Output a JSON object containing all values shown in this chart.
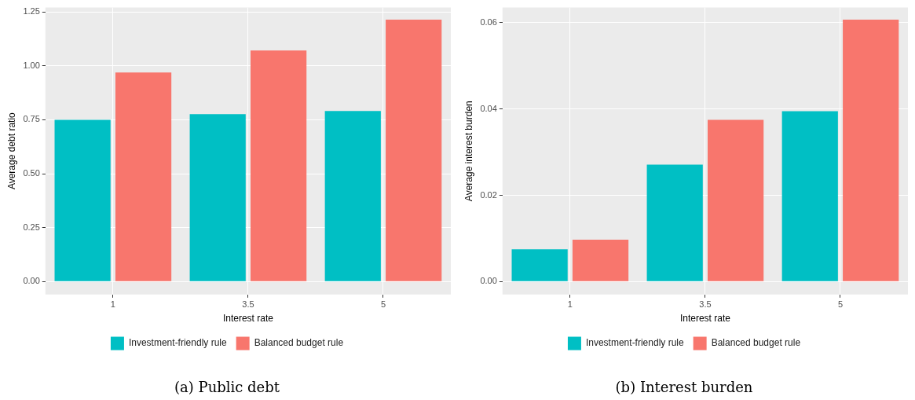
{
  "chart_data": [
    {
      "type": "bar",
      "title": "(a) Public debt",
      "xlabel": "Interest rate",
      "ylabel": "Average debt ratio",
      "categories": [
        "1",
        "3.5",
        "5"
      ],
      "series": [
        {
          "name": "Investment-friendly rule",
          "color": "#00bfc4",
          "values": [
            0.75,
            0.776,
            0.791
          ]
        },
        {
          "name": "Balanced budget rule",
          "color": "#f8766d",
          "values": [
            0.969,
            1.071,
            1.214
          ]
        }
      ],
      "ylim": [
        -0.06,
        1.27
      ],
      "yticks": [
        {
          "value": 0,
          "label": "0.00"
        },
        {
          "value": 0.25,
          "label": "0.25"
        },
        {
          "value": 0.5,
          "label": "0.50"
        },
        {
          "value": 0.75,
          "label": "0.75"
        },
        {
          "value": 1,
          "label": "1.00"
        },
        {
          "value": 1.25,
          "label": "1.25"
        }
      ],
      "grid": true,
      "legend": "bottom"
    },
    {
      "type": "bar",
      "title": "(b) Interest burden",
      "xlabel": "Interest rate",
      "ylabel": "Average interest burden",
      "categories": [
        "1",
        "3.5",
        "5"
      ],
      "series": [
        {
          "name": "Investment-friendly rule",
          "color": "#00bfc4",
          "values": [
            0.0075,
            0.0271,
            0.0395
          ]
        },
        {
          "name": "Balanced budget rule",
          "color": "#f8766d",
          "values": [
            0.0097,
            0.0375,
            0.0607
          ]
        }
      ],
      "ylim": [
        -0.003,
        0.0635
      ],
      "yticks": [
        {
          "value": 0,
          "label": "0.00"
        },
        {
          "value": 0.02,
          "label": "0.02"
        },
        {
          "value": 0.04,
          "label": "0.04"
        },
        {
          "value": 0.06,
          "label": "0.06"
        }
      ],
      "grid": true,
      "legend": "bottom"
    }
  ]
}
